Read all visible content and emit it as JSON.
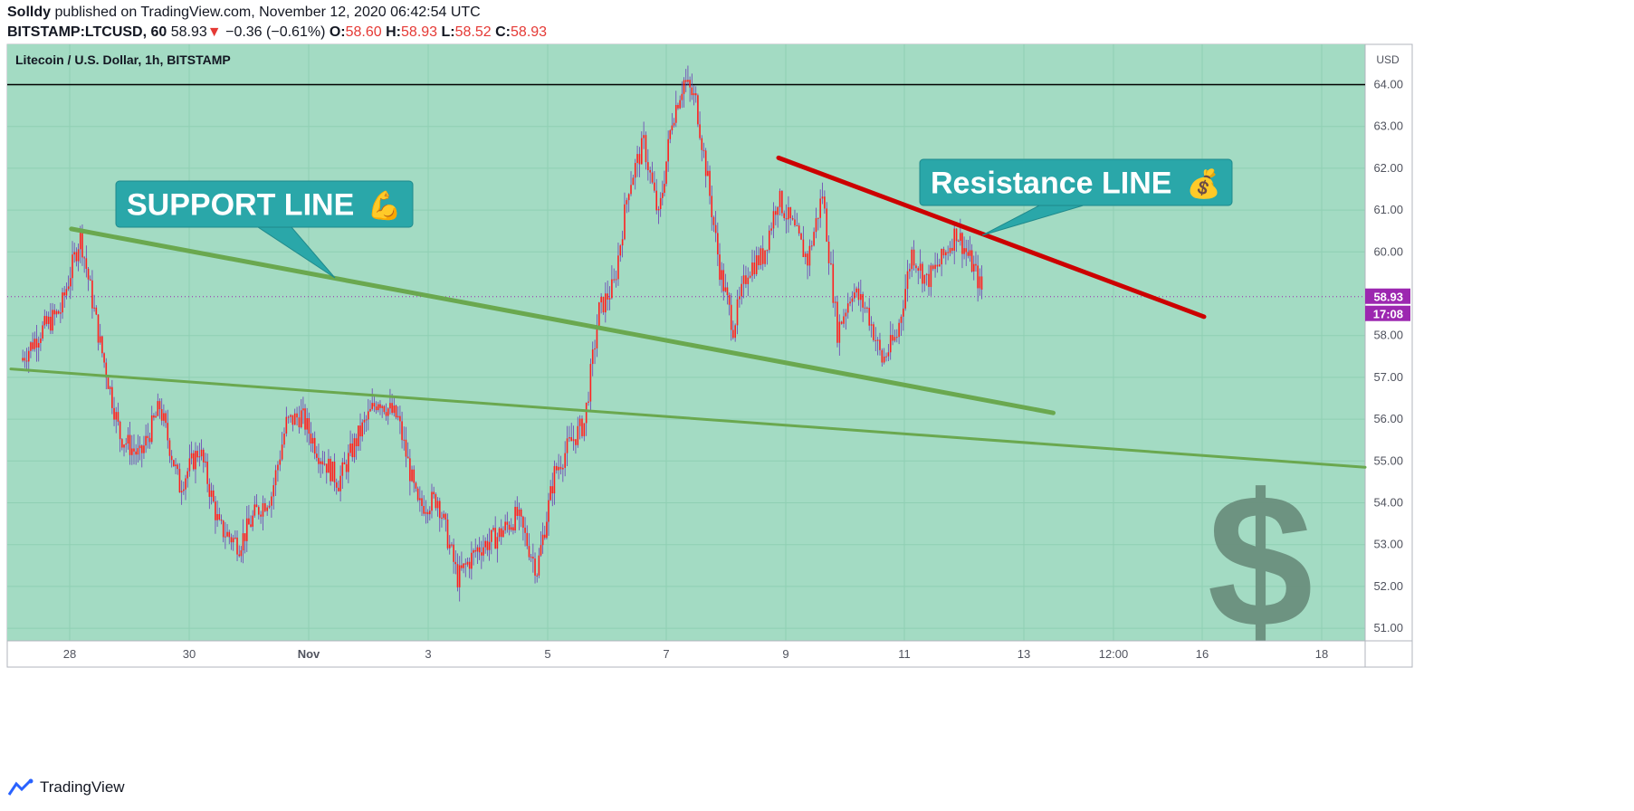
{
  "header": {
    "author": "Solldy",
    "published_text": "published on TradingView.com,",
    "timestamp": "November 12, 2020 06:42:54 UTC",
    "symbol": "BITSTAMP:LTCUSD, 60",
    "last": "58.93",
    "change_arrow": "▼",
    "change": "−0.36 (−0.61%)",
    "open_label": "O:",
    "open": "58.60",
    "high_label": "H:",
    "high": "58.93",
    "low_label": "L:",
    "low": "58.52",
    "close_label": "C:",
    "close": "58.93"
  },
  "footer": {
    "brand": "TradingView",
    "logo_icon": "tradingview-logo-icon"
  },
  "colors": {
    "plot_bg": "#a3dbc3",
    "candle": "#ff1f1f",
    "wick": "#6a3fb5",
    "support": "#6aa84f",
    "resistance": "#cc0000",
    "callout": "#2aa7a9",
    "price_badge": "#9c27b0"
  },
  "chart_data": {
    "type": "candlestick",
    "title": "Litecoin / U.S. Dollar, 1h, BITSTAMP",
    "currency_label": "USD",
    "y_ticks": [
      "64.00",
      "63.00",
      "62.00",
      "61.00",
      "60.00",
      "58.00",
      "57.00",
      "56.00",
      "55.00",
      "54.00",
      "53.00",
      "52.00",
      "51.00"
    ],
    "x_ticks": [
      "28",
      "30",
      "Nov",
      "3",
      "5",
      "7",
      "9",
      "11",
      "13",
      "12:00",
      "16",
      "18"
    ],
    "last_price": "58.93",
    "countdown": "17:08",
    "horizontal_level": 64.0,
    "price_path": [
      [
        "Oct 27",
        57.4
      ],
      [
        "Oct 27",
        58.1
      ],
      [
        "Oct 27",
        58.6
      ],
      [
        "Oct 28",
        60.4
      ],
      [
        "Oct 28",
        57.8
      ],
      [
        "Oct 28",
        55.6
      ],
      [
        "Oct 29",
        55.1
      ],
      [
        "Oct 29",
        56.3
      ],
      [
        "Oct 29",
        54.4
      ],
      [
        "Oct 30",
        55.3
      ],
      [
        "Oct 30",
        53.4
      ],
      [
        "Oct 30",
        53.0
      ],
      [
        "Oct 31",
        53.8
      ],
      [
        "Oct 31",
        54.2
      ],
      [
        "Oct 31",
        55.9
      ],
      [
        "Oct 31",
        56.1
      ],
      [
        "Nov 1",
        55.2
      ],
      [
        "Nov 1",
        54.5
      ],
      [
        "Nov 1",
        55.6
      ],
      [
        "Nov 2",
        56.5
      ],
      [
        "Nov 2",
        56.0
      ],
      [
        "Nov 2",
        53.9
      ],
      [
        "Nov 3",
        54.1
      ],
      [
        "Nov 3",
        52.2
      ],
      [
        "Nov 3",
        52.9
      ],
      [
        "Nov 4",
        53.2
      ],
      [
        "Nov 4",
        53.7
      ],
      [
        "Nov 4",
        52.4
      ],
      [
        "Nov 5",
        54.7
      ],
      [
        "Nov 5",
        55.4
      ],
      [
        "Nov 5",
        55.9
      ],
      [
        "Nov 5",
        58.6
      ],
      [
        "Nov 6",
        59.2
      ],
      [
        "Nov 6",
        61.6
      ],
      [
        "Nov 6",
        62.6
      ],
      [
        "Nov 6",
        60.8
      ],
      [
        "Nov 7",
        63.2
      ],
      [
        "Nov 7",
        64.1
      ],
      [
        "Nov 7",
        63.6
      ],
      [
        "Nov 7",
        61.7
      ],
      [
        "Nov 7",
        59.6
      ],
      [
        "Nov 8",
        58.2
      ],
      [
        "Nov 8",
        59.6
      ],
      [
        "Nov 8",
        59.9
      ],
      [
        "Nov 8",
        61.3
      ],
      [
        "Nov 9",
        60.6
      ],
      [
        "Nov 9",
        59.8
      ],
      [
        "Nov 9",
        61.4
      ],
      [
        "Nov 9",
        58.1
      ],
      [
        "Nov 10",
        59.1
      ],
      [
        "Nov 10",
        58.6
      ],
      [
        "Nov 10",
        57.4
      ],
      [
        "Nov 10",
        58.0
      ],
      [
        "Nov 11",
        60.0
      ],
      [
        "Nov 11",
        59.3
      ],
      [
        "Nov 11",
        59.8
      ],
      [
        "Nov 11",
        60.5
      ],
      [
        "Nov 12",
        59.6
      ],
      [
        "Nov 12",
        58.3
      ],
      [
        "Nov 12",
        58.93
      ]
    ],
    "annotations": [
      {
        "text": "SUPPORT LINE",
        "emoji": "💪"
      },
      {
        "text": "Resistance LINE",
        "emoji": "💰"
      }
    ],
    "watermark_icon": "dollar-sign-icon",
    "support_lines": [
      {
        "from": [
          "Oct 28",
          60.55
        ],
        "to": [
          "Nov 13 12:00",
          56.15
        ]
      },
      {
        "from": [
          "Oct 27",
          57.2
        ],
        "to": [
          "Nov 18",
          54.85
        ]
      }
    ],
    "resistance_line": {
      "from": [
        "Nov 9",
        62.25
      ],
      "to": [
        "Nov 16",
        58.45
      ]
    }
  }
}
